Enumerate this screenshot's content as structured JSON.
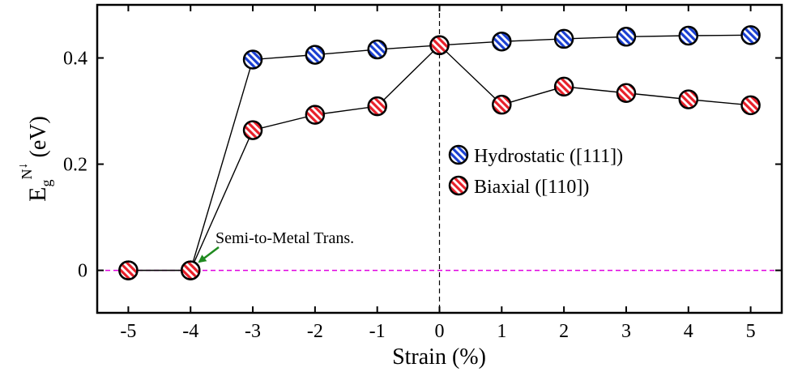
{
  "chart_data": {
    "type": "line",
    "title": "",
    "xlabel": "Strain (%)",
    "ylabel": {
      "base": "E",
      "sub": "g",
      "sup": "N",
      "sup_arrow": "↓",
      "unit": "(eV)"
    },
    "x": [
      -5,
      -4,
      -3,
      -2,
      -1,
      0,
      1,
      2,
      3,
      4,
      5
    ],
    "xlim": [
      -5.5,
      5.5
    ],
    "ylim": [
      -0.08,
      0.5
    ],
    "xticks": [
      "-5",
      "-4",
      "-3",
      "-2",
      "-1",
      "0",
      "1",
      "2",
      "3",
      "4",
      "5"
    ],
    "yticks": [
      {
        "value": 0,
        "label": "0"
      },
      {
        "value": 0.2,
        "label": "0.2"
      },
      {
        "value": 0.4,
        "label": "0.4"
      }
    ],
    "series": [
      {
        "name": "Hydrostatic ([111])",
        "color": "#1a3fd1",
        "values": [
          0.0,
          0.0,
          0.397,
          0.406,
          0.416,
          0.424,
          0.431,
          0.436,
          0.44,
          0.442,
          0.443
        ]
      },
      {
        "name": "Biaxial ([110])",
        "color": "#e8202a",
        "values": [
          0.0,
          0.0,
          0.264,
          0.293,
          0.309,
          0.424,
          0.312,
          0.346,
          0.334,
          0.322,
          0.311
        ]
      }
    ],
    "reference_lines": {
      "horizontal_y": 0,
      "horizontal_color": "#e000e0",
      "vertical_x": 0,
      "vertical_color": "#000000"
    },
    "annotation": {
      "text": "Semi-to-Metal Trans.",
      "target_x": -4,
      "target_y": 0,
      "arrow_color": "#1f8a1f"
    },
    "legend_position": "center-right",
    "grid": false
  }
}
